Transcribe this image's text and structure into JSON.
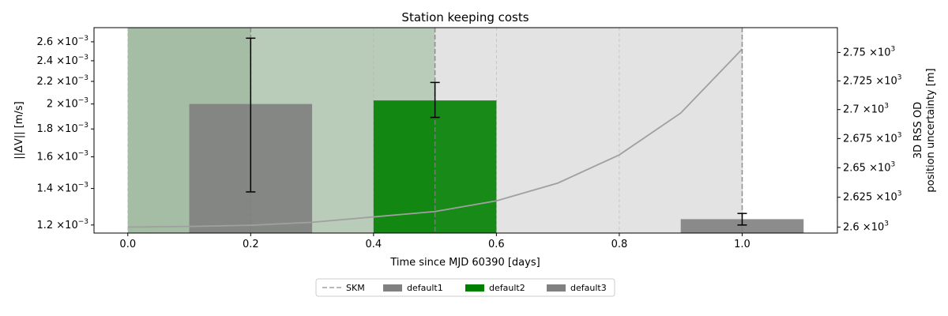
{
  "chart_data": {
    "type": "bar",
    "title": "Station keeping costs",
    "xlabel": "Time since MJD 60390 [days]",
    "ylabel_left": "||ΔV|| [m/s]",
    "ylabel_right_line1": "3D RSS OD",
    "ylabel_right_line2": "position uncertainty [m]",
    "xlim": [
      -0.055,
      1.155
    ],
    "x_ticks": [
      "0.0",
      "0.2",
      "0.4",
      "0.6",
      "0.8",
      "1.0"
    ],
    "x_tick_values": [
      0.0,
      0.2,
      0.4,
      0.6,
      0.8,
      1.0
    ],
    "left_axis": {
      "scale": "log",
      "ylim": [
        0.00116,
        0.00276
      ],
      "ticks": [
        {
          "value": 0.0012,
          "mantissa": "1.2",
          "times": "×10",
          "exponent": "−3"
        },
        {
          "value": 0.0014,
          "mantissa": "1.4",
          "times": "×10",
          "exponent": "−3"
        },
        {
          "value": 0.0016,
          "mantissa": "1.6",
          "times": "×10",
          "exponent": "−3"
        },
        {
          "value": 0.0018,
          "mantissa": "1.8",
          "times": "×10",
          "exponent": "−3"
        },
        {
          "value": 0.002,
          "mantissa": "2",
          "times": "×10",
          "exponent": "−3"
        },
        {
          "value": 0.0022,
          "mantissa": "2.2",
          "times": "×10",
          "exponent": "−3"
        },
        {
          "value": 0.0024,
          "mantissa": "2.4",
          "times": "×10",
          "exponent": "−3"
        },
        {
          "value": 0.0026,
          "mantissa": "2.6",
          "times": "×10",
          "exponent": "−3"
        }
      ]
    },
    "right_axis": {
      "scale": "log",
      "ylim": [
        2595,
        2772
      ],
      "ticks": [
        {
          "value": 2600,
          "mantissa": "2.6",
          "times": "×10",
          "exponent": "3"
        },
        {
          "value": 2625,
          "mantissa": "2.625",
          "times": "×10",
          "exponent": "3"
        },
        {
          "value": 2650,
          "mantissa": "2.65",
          "times": "×10",
          "exponent": "3"
        },
        {
          "value": 2675,
          "mantissa": "2.675",
          "times": "×10",
          "exponent": "3"
        },
        {
          "value": 2700,
          "mantissa": "2.7",
          "times": "×10",
          "exponent": "3"
        },
        {
          "value": 2725,
          "mantissa": "2.725",
          "times": "×10",
          "exponent": "3"
        },
        {
          "value": 2750,
          "mantissa": "2.75",
          "times": "×10",
          "exponent": "3"
        }
      ]
    },
    "bars": [
      {
        "name": "default1",
        "x": 0.2,
        "width": 0.2,
        "value": 0.002,
        "err_low": 0.00138,
        "err_high": 0.00264,
        "color": "#808080"
      },
      {
        "name": "default2",
        "x": 0.5,
        "width": 0.2,
        "value": 0.00203,
        "err_low": 0.00189,
        "err_high": 0.00219,
        "color": "#008000"
      },
      {
        "name": "default3",
        "x": 1.0,
        "width": 0.2,
        "value": 0.00123,
        "err_low": 0.0012,
        "err_high": 0.00126,
        "color": "#808080"
      }
    ],
    "shaded_regions": [
      {
        "x0": 0.0,
        "x1": 0.2,
        "color": "#8fad8f"
      },
      {
        "x0": 0.0,
        "x1": 0.5,
        "color": "#8fb58f"
      },
      {
        "x0": 0.0,
        "x1": 1.0,
        "color": "#c8c8c8"
      }
    ],
    "skm_lines": [
      0.2,
      0.5,
      1.0
    ],
    "uncertainty_line": {
      "x": [
        0.0,
        0.1,
        0.2,
        0.3,
        0.4,
        0.5,
        0.6,
        0.7,
        0.8,
        0.9,
        1.0
      ],
      "y": [
        2600,
        2600.5,
        2601.5,
        2604,
        2608.5,
        2613,
        2622,
        2637,
        2661,
        2697,
        2753
      ],
      "color": "#a0a0a0"
    },
    "legend": {
      "placement": "bottom-center",
      "entries": [
        {
          "label": "SKM",
          "kind": "dashed",
          "color": "#a0a0a0"
        },
        {
          "label": "default1",
          "kind": "patch",
          "color": "#808080"
        },
        {
          "label": "default2",
          "kind": "patch",
          "color": "#008000"
        },
        {
          "label": "default3",
          "kind": "patch",
          "color": "#808080"
        }
      ]
    },
    "grid": "vertical-dashed"
  }
}
